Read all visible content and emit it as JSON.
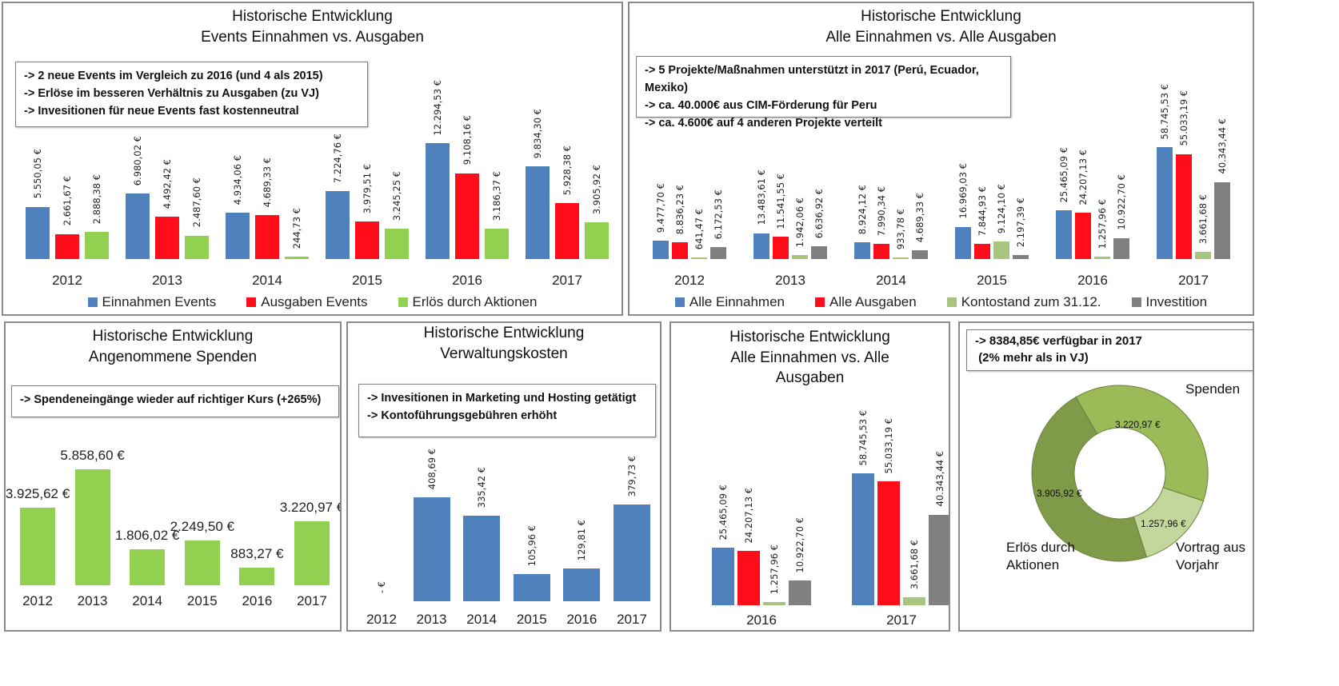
{
  "chart_data": [
    {
      "type": "bar",
      "title": [
        "Historische Entwicklung",
        "Events Einnahmen vs. Ausgaben"
      ],
      "notes": [
        "-> 2 neue Events im Vergleich zu 2016 (und 4 als 2015)",
        "-> Erlöse im besseren Verhältnis zu Ausgaben (zu VJ)",
        "-> Invesitionen für neue Events fast kostenneutral"
      ],
      "categories": [
        "2012",
        "2013",
        "2014",
        "2015",
        "2016",
        "2017"
      ],
      "legend": "bottom",
      "series": [
        {
          "name": "Einnahmen Events",
          "color": "#4f81bd",
          "values": [
            5550.05,
            6980.02,
            4934.06,
            7224.76,
            12294.53,
            9834.3
          ],
          "labels": [
            "5.550,05 €",
            "6.980,02 €",
            "4.934,06 €",
            "7.224,76 €",
            "12.294,53 €",
            "9.834,30 €"
          ]
        },
        {
          "name": "Ausgaben Events",
          "color": "#ff0d1a",
          "values": [
            2661.67,
            4492.42,
            4689.33,
            3979.51,
            9108.16,
            5928.38
          ],
          "labels": [
            "2.661,67 €",
            "4.492,42 €",
            "4.689,33 €",
            "3.979,51 €",
            "9.108,16 €",
            "5.928,38 €"
          ]
        },
        {
          "name": "Erlös durch Aktionen",
          "color": "#92d050",
          "values": [
            2888.38,
            2487.6,
            244.73,
            3245.25,
            3186.37,
            3905.92
          ],
          "labels": [
            "2.888,38 €",
            "2.487,60 €",
            "244,73 €",
            "3.245,25 €",
            "3.186,37 €",
            "3.905,92 €"
          ]
        }
      ]
    },
    {
      "type": "bar",
      "title": [
        "Historische Entwicklung",
        "Alle Einnahmen vs. Alle Ausgaben"
      ],
      "notes": [
        "-> 5 Projekte/Maßnahmen unterstützt in 2017 (Perú, Ecuador, Mexiko)",
        "-> ca. 40.000€ aus CIM-Förderung für Peru",
        "-> ca. 4.600€ auf 4 anderen Projekte verteilt"
      ],
      "categories": [
        "2012",
        "2013",
        "2014",
        "2015",
        "2016",
        "2017"
      ],
      "legend": "bottom",
      "series": [
        {
          "name": "Alle Einnahmen",
          "color": "#4f81bd",
          "values": [
            9477.7,
            13483.61,
            8924.12,
            16969.03,
            25465.09,
            58745.53
          ],
          "labels": [
            "9.477,70 €",
            "13.483,61 €",
            "8.924,12 €",
            "16.969,03 €",
            "25.465,09 €",
            "58.745,53 €"
          ]
        },
        {
          "name": "Alle Ausgaben",
          "color": "#ff0d1a",
          "values": [
            8836.23,
            11541.55,
            7990.34,
            7844.93,
            24207.13,
            55033.19
          ],
          "labels": [
            "8.836,23 €",
            "11.541,55 €",
            "7.990,34 €",
            "7.844,93 €",
            "24.207,13 €",
            "55.033,19 €"
          ]
        },
        {
          "name": "Kontostand zum 31.12.",
          "color": "#a9c47f",
          "values": [
            641.47,
            1942.06,
            933.78,
            9124.1,
            1257.96,
            3661.68
          ],
          "labels": [
            "641,47 €",
            "1.942,06 €",
            "933,78 €",
            "9.124,10 €",
            "1.257,96 €",
            "3.661,68 €"
          ]
        },
        {
          "name": "Investition",
          "color": "#808080",
          "values": [
            6172.53,
            6636.92,
            4689.33,
            2197.39,
            10922.7,
            40343.44
          ],
          "labels": [
            "6.172,53 €",
            "6.636,92 €",
            "4.689,33 €",
            "2.197,39 €",
            "10.922,70 €",
            "40.343,44 €"
          ]
        }
      ]
    },
    {
      "type": "bar",
      "title": [
        "Historische Entwicklung",
        "Angenommene Spenden"
      ],
      "notes": [
        "-> Spendeneingänge wieder auf richtiger Kurs (+265%)"
      ],
      "categories": [
        "2012",
        "2013",
        "2014",
        "2015",
        "2016",
        "2017"
      ],
      "series": [
        {
          "color": "#92d050",
          "values": [
            3925.62,
            5858.6,
            1806.02,
            2249.5,
            883.27,
            3220.97
          ],
          "labels": [
            "3.925,62 €",
            "5.858,60 €",
            "1.806,02 €",
            "2.249,50 €",
            "883,27 €",
            "3.220,97 €"
          ]
        }
      ]
    },
    {
      "type": "bar",
      "title": [
        "Historische Entwicklung",
        "Verwaltungskosten"
      ],
      "notes": [
        "-> Invesitionen in Marketing und Hosting getätigt",
        "-> Kontoführungsgebühren erhöht"
      ],
      "categories": [
        "2012",
        "2013",
        "2014",
        "2015",
        "2016",
        "2017"
      ],
      "series": [
        {
          "color": "#4f81bd",
          "values": [
            0,
            408.69,
            335.42,
            105.96,
            129.81,
            379.73
          ],
          "labels": [
            "- €",
            "408,69 €",
            "335,42 €",
            "105,96 €",
            "129,81 €",
            "379,73 €"
          ]
        }
      ]
    },
    {
      "type": "bar",
      "title": [
        "Historische Entwicklung",
        "Alle Einnahmen vs. Alle",
        "Ausgaben"
      ],
      "notes": [],
      "categories": [
        "2016",
        "2017"
      ],
      "series": [
        {
          "color": "#4f81bd",
          "values": [
            25465.09,
            58745.53
          ],
          "labels": [
            "25.465,09 €",
            "58.745,53 €"
          ]
        },
        {
          "color": "#ff0d1a",
          "values": [
            24207.13,
            55033.19
          ],
          "labels": [
            "24.207,13 €",
            "55.033,19 €"
          ]
        },
        {
          "color": "#a9c47f",
          "values": [
            1257.96,
            3661.68
          ],
          "labels": [
            "1.257,96 €",
            "3.661,68 €"
          ]
        },
        {
          "color": "#808080",
          "values": [
            10922.7,
            40343.44
          ],
          "labels": [
            "10.922,70 €",
            "40.343,44 €"
          ]
        }
      ]
    },
    {
      "type": "pie",
      "donut": true,
      "notes": [
        "-> 8384,85€ verfügbar in 2017",
        " (2% mehr als in VJ)"
      ],
      "slices": [
        {
          "name": "Spenden",
          "value": 3220.97,
          "label": "3.220,97 €",
          "color": "#9bbb59"
        },
        {
          "name": "Vortrag aus Vorjahr",
          "value": 1257.96,
          "label": "1.257,96 €",
          "color": "#c3d69b"
        },
        {
          "name": "Erlös durch Aktionen",
          "value": 3905.92,
          "label": "3.905,92 €",
          "color": "#7f9a48"
        }
      ]
    }
  ]
}
